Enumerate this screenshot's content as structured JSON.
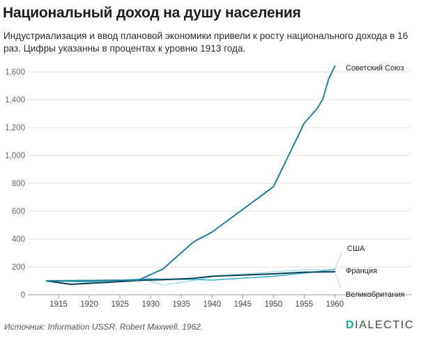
{
  "header": {
    "title": "Национальный доход на душу населения",
    "subtitle": "Индустриализация и ввод плановой экономики привели к росту национального дохода в 16 раз. Цифры указанны в процентах к уровню 1913 года."
  },
  "footer": {
    "source": "Источник: Information USSR. Robert Maxwell. 1962.",
    "brand_first": "D",
    "brand_rest": "IALECTIC"
  },
  "chart_data": {
    "type": "line",
    "title": "Национальный доход на душу населения",
    "xlim": [
      1910,
      1962
    ],
    "ylim": [
      0,
      1700
    ],
    "x_ticks": [
      1915,
      1920,
      1925,
      1930,
      1935,
      1940,
      1945,
      1950,
      1955,
      1960
    ],
    "y_ticks": [
      0,
      200,
      400,
      600,
      800,
      1000,
      1200,
      1400,
      1600
    ],
    "y_tick_labels": [
      "0",
      "200",
      "400",
      "600",
      "800",
      "1,000",
      "1,200",
      "1,400",
      "1,600"
    ],
    "grid": "horizontal",
    "series": [
      {
        "name": "Советский Союз",
        "color": "#1f7d98",
        "x": [
          1913,
          1928,
          1932,
          1937,
          1940,
          1950,
          1955,
          1957,
          1958,
          1959,
          1960
        ],
        "y": [
          100,
          105,
          185,
          380,
          450,
          775,
          1230,
          1330,
          1400,
          1550,
          1640
        ]
      },
      {
        "name": "США",
        "color": "#a8dfec",
        "x": [
          1913,
          1920,
          1929,
          1932,
          1937,
          1940,
          1950,
          1955,
          1957,
          1959,
          1960
        ],
        "y": [
          100,
          102,
          110,
          70,
          102,
          130,
          165,
          180,
          180,
          175,
          185
        ]
      },
      {
        "name": "Франция",
        "color": "#3bb6c9",
        "x": [
          1913,
          1920,
          1929,
          1932,
          1937,
          1940,
          1950,
          1955,
          1960
        ],
        "y": [
          100,
          92,
          115,
          112,
          110,
          106,
          133,
          155,
          182
        ]
      },
      {
        "name": "Великобритания",
        "color": "#0e3f57",
        "x": [
          1913,
          1917,
          1920,
          1929,
          1932,
          1937,
          1940,
          1950,
          1955,
          1960
        ],
        "y": [
          100,
          75,
          82,
          105,
          108,
          118,
          133,
          150,
          162,
          165
        ]
      }
    ]
  }
}
